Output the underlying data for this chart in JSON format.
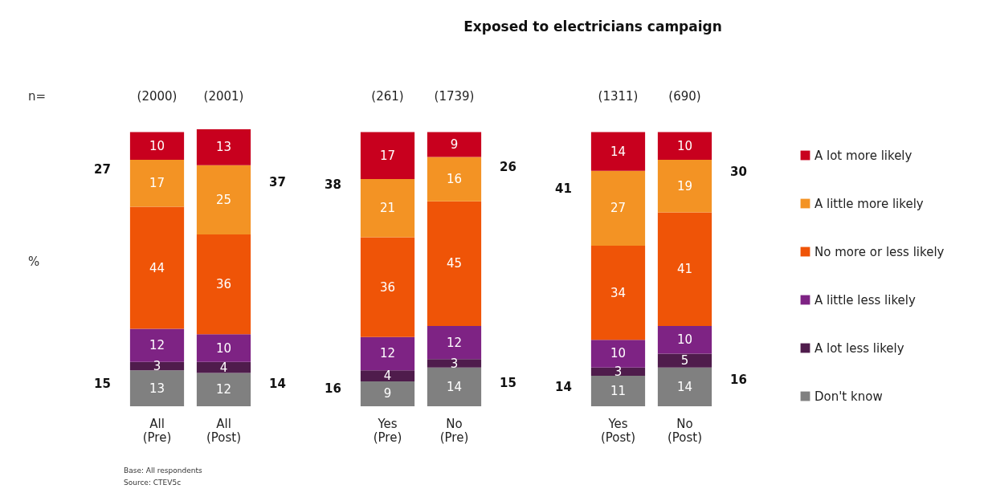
{
  "chart_data": {
    "type": "bar",
    "title": "Exposed to electricians campaign",
    "categories": [
      "All (Pre)",
      "All (Post)",
      "Yes (Pre)",
      "No (Pre)",
      "Yes (Post)",
      "No (Post)"
    ],
    "stacked": true,
    "data_labels": true,
    "legend": "right",
    "series": [
      {
        "name": "Don't know",
        "color": "#808080",
        "values": [
          13,
          12,
          9,
          14,
          11,
          14
        ]
      },
      {
        "name": "A lot less likely",
        "color": "#4f1c4c",
        "values": [
          3,
          4,
          4,
          3,
          3,
          5
        ]
      },
      {
        "name": "A little less likely",
        "color": "#7e2384",
        "values": [
          12,
          10,
          12,
          12,
          10,
          10
        ]
      },
      {
        "name": "No more or less likely",
        "color": "#ef5407",
        "values": [
          44,
          36,
          36,
          45,
          34,
          41
        ]
      },
      {
        "name": "A little more likely",
        "color": "#f39324",
        "values": [
          17,
          25,
          21,
          16,
          27,
          19
        ]
      },
      {
        "name": "A lot more likely",
        "color": "#c8001e",
        "values": [
          10,
          13,
          17,
          9,
          14,
          10
        ]
      }
    ],
    "annotations": [
      "n=",
      "%",
      "Base: All respondents",
      "Source: CTEV5c",
      "(2000)",
      "(2001)",
      "(261)",
      "(1739)",
      "(1311)",
      "(690)",
      "27",
      "37",
      "38",
      "26",
      "41",
      "30",
      "15",
      "14",
      "16",
      "15",
      "14",
      "16"
    ]
  }
}
